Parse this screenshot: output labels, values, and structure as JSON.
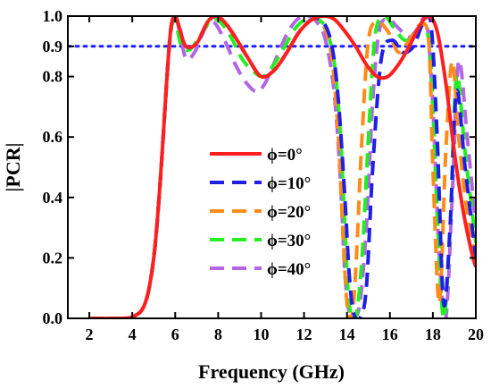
{
  "chart_data": {
    "type": "line",
    "title": "",
    "xlabel": "Frequency (GHz)",
    "ylabel": "|PCR|",
    "xlim": [
      1,
      20
    ],
    "ylim": [
      0.0,
      1.0
    ],
    "xticks": [
      2,
      4,
      6,
      8,
      10,
      12,
      14,
      16,
      18,
      20
    ],
    "yticks": [
      0.0,
      0.2,
      0.4,
      0.6,
      0.8,
      0.9,
      1.0
    ],
    "ytick_labels": [
      "0.0",
      "0.2",
      "0.4",
      "0.6",
      "0.8",
      "0.9",
      "1.0"
    ],
    "grid": false,
    "legend_position": "center",
    "reference_line": {
      "y": 0.9,
      "color": "#1f1fff",
      "style": "dotted"
    },
    "series": [
      {
        "name": "ϕ=0°",
        "color": "#ff1f1f",
        "style": "solid",
        "x": [
          2,
          3.0,
          4.0,
          4.6,
          5.0,
          5.3,
          5.6,
          5.8,
          6.0,
          6.2,
          6.5,
          7.0,
          7.5,
          7.9,
          8.3,
          8.8,
          9.4,
          10.0,
          10.6,
          11.2,
          11.8,
          12.4,
          12.9,
          13.4,
          13.9,
          14.4,
          14.9,
          15.4,
          15.9,
          16.4,
          16.9,
          17.4,
          17.8,
          18.2,
          18.6,
          19.0,
          19.4,
          19.8,
          20.0
        ],
        "y": [
          0.0,
          0.0,
          0.005,
          0.05,
          0.2,
          0.45,
          0.78,
          0.96,
          1.0,
          0.96,
          0.9,
          0.91,
          0.98,
          1.0,
          0.98,
          0.93,
          0.86,
          0.8,
          0.82,
          0.88,
          0.95,
          0.99,
          1.0,
          0.99,
          0.95,
          0.9,
          0.84,
          0.8,
          0.8,
          0.84,
          0.9,
          0.97,
          1.0,
          0.95,
          0.78,
          0.55,
          0.36,
          0.22,
          0.17
        ]
      },
      {
        "name": "ϕ=10°",
        "color": "#1f1fe6",
        "style": "dashed",
        "x": [
          2,
          3.0,
          4.0,
          4.6,
          5.0,
          5.3,
          5.6,
          5.8,
          6.0,
          6.2,
          6.5,
          7.0,
          7.5,
          7.9,
          8.3,
          8.8,
          9.4,
          10.0,
          10.6,
          11.2,
          11.8,
          12.4,
          12.9,
          13.3,
          13.6,
          13.9,
          14.1,
          14.3,
          14.6,
          14.9,
          15.2,
          15.6,
          16.1,
          16.6,
          17.1,
          17.5,
          17.9,
          18.2,
          18.5,
          18.8,
          19.1,
          19.5,
          20.0
        ],
        "y": [
          0.0,
          0.0,
          0.005,
          0.05,
          0.2,
          0.45,
          0.78,
          0.96,
          1.0,
          0.96,
          0.9,
          0.91,
          0.98,
          1.0,
          0.98,
          0.93,
          0.86,
          0.8,
          0.82,
          0.88,
          0.95,
          0.99,
          0.98,
          0.9,
          0.72,
          0.4,
          0.15,
          0.02,
          0.0,
          0.1,
          0.5,
          0.86,
          0.92,
          0.88,
          0.9,
          0.97,
          0.98,
          0.6,
          0.05,
          0.3,
          0.75,
          0.5,
          0.2
        ]
      },
      {
        "name": "ϕ=20°",
        "color": "#ff8c1a",
        "style": "dashed",
        "x": [
          2,
          3.0,
          4.0,
          4.6,
          5.0,
          5.3,
          5.6,
          5.8,
          6.0,
          6.2,
          6.5,
          7.0,
          7.5,
          7.9,
          8.3,
          8.8,
          9.4,
          10.0,
          10.6,
          11.2,
          11.8,
          12.4,
          12.9,
          13.3,
          13.6,
          13.8,
          14.0,
          14.2,
          14.4,
          14.7,
          15.0,
          15.4,
          15.9,
          16.4,
          16.9,
          17.4,
          17.8,
          18.0,
          18.3,
          18.6,
          18.9,
          19.2,
          19.6,
          20.0
        ],
        "y": [
          0.0,
          0.0,
          0.005,
          0.05,
          0.2,
          0.45,
          0.78,
          0.96,
          1.0,
          0.96,
          0.9,
          0.91,
          0.98,
          1.0,
          0.98,
          0.93,
          0.86,
          0.8,
          0.82,
          0.88,
          0.95,
          0.99,
          0.97,
          0.86,
          0.6,
          0.3,
          0.05,
          0.0,
          0.15,
          0.6,
          0.92,
          0.98,
          0.95,
          0.88,
          0.92,
          0.97,
          0.92,
          0.5,
          0.05,
          0.55,
          0.85,
          0.6,
          0.35,
          0.2
        ]
      },
      {
        "name": "ϕ=30°",
        "color": "#22ee22",
        "style": "dashed",
        "x": [
          2,
          3.0,
          4.0,
          4.6,
          5.0,
          5.3,
          5.6,
          5.8,
          6.0,
          6.3,
          6.7,
          7.2,
          7.7,
          8.1,
          8.6,
          9.1,
          9.6,
          10.1,
          10.6,
          11.1,
          11.6,
          12.1,
          12.6,
          13.0,
          13.4,
          13.7,
          13.9,
          14.1,
          14.4,
          14.7,
          15.0,
          15.3,
          15.7,
          16.2,
          16.7,
          17.2,
          17.6,
          17.9,
          18.2,
          18.5,
          18.8,
          19.1,
          19.5,
          20.0
        ],
        "y": [
          0.0,
          0.0,
          0.005,
          0.05,
          0.2,
          0.45,
          0.78,
          0.95,
          0.98,
          0.9,
          0.89,
          0.94,
          0.99,
          0.98,
          0.93,
          0.86,
          0.82,
          0.8,
          0.84,
          0.9,
          0.96,
          0.99,
          0.99,
          0.96,
          0.85,
          0.6,
          0.3,
          0.05,
          0.0,
          0.2,
          0.6,
          0.93,
          1.0,
          0.96,
          0.92,
          0.94,
          0.97,
          0.85,
          0.35,
          0.0,
          0.3,
          0.8,
          0.55,
          0.25
        ]
      },
      {
        "name": "ϕ=40°",
        "color": "#b266e6",
        "style": "dashed",
        "x": [
          2,
          3.0,
          4.0,
          4.6,
          5.0,
          5.3,
          5.6,
          5.8,
          6.0,
          6.2,
          6.5,
          6.9,
          7.4,
          7.8,
          8.3,
          8.8,
          9.3,
          9.8,
          10.2,
          10.7,
          11.2,
          11.7,
          12.2,
          12.6,
          13.0,
          13.4,
          13.7,
          13.9,
          14.1,
          14.3,
          14.6,
          14.9,
          15.2,
          15.5,
          15.9,
          16.4,
          16.9,
          17.4,
          17.7,
          18.0,
          18.3,
          18.6,
          18.9,
          19.2,
          19.6,
          20.0
        ],
        "y": [
          0.0,
          0.0,
          0.005,
          0.05,
          0.2,
          0.45,
          0.78,
          0.95,
          1.0,
          0.95,
          0.86,
          0.88,
          0.96,
          0.98,
          0.92,
          0.84,
          0.78,
          0.75,
          0.78,
          0.86,
          0.94,
          0.99,
          1.0,
          0.98,
          0.92,
          0.75,
          0.45,
          0.15,
          0.02,
          0.0,
          0.05,
          0.3,
          0.72,
          0.95,
          0.99,
          0.96,
          0.93,
          0.97,
          0.99,
          0.7,
          0.2,
          0.0,
          0.4,
          0.85,
          0.6,
          0.3
        ]
      }
    ]
  }
}
